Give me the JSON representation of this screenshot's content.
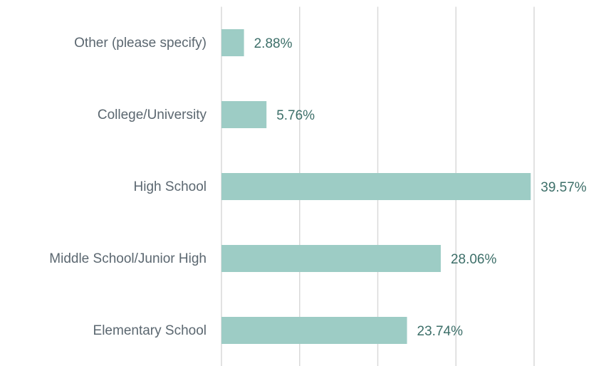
{
  "chart_data": {
    "type": "hbar",
    "categories": [
      "Other (please specify)",
      "College/University",
      "High School",
      "Middle School/Junior High",
      "Elementary School"
    ],
    "values": [
      2.88,
      5.76,
      39.57,
      28.06,
      23.74
    ],
    "value_labels": [
      "2.88%",
      "5.76%",
      "39.57%",
      "28.06%",
      "23.74%"
    ],
    "color": "#9dccc5",
    "xlim": [
      0,
      40
    ],
    "xticks": [
      0,
      10,
      20,
      30,
      40
    ],
    "grid": true
  }
}
